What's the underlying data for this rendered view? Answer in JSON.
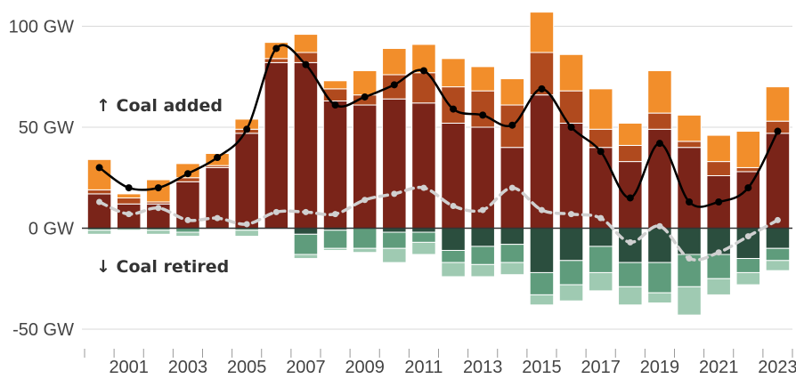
{
  "chart_data": {
    "type": "bar",
    "title": "",
    "xlabel": "",
    "ylabel": "",
    "ylim": [
      -60,
      100
    ],
    "y_ticks": [
      {
        "value": 100,
        "label": "100 GW"
      },
      {
        "value": 50,
        "label": "50 GW"
      },
      {
        "value": 0,
        "label": "0 GW"
      },
      {
        "value": -50,
        "label": "-50 GW"
      }
    ],
    "x_tick_labels": [
      "2001",
      "2003",
      "2005",
      "2007",
      "2009",
      "2011",
      "2013",
      "2015",
      "2017",
      "2019",
      "2021",
      "2023"
    ],
    "annotations": {
      "added": "↑ Coal added",
      "retired": "↓ Coal retired"
    },
    "categories": [
      "2000",
      "2001",
      "2002",
      "2003",
      "2004",
      "2005",
      "2006",
      "2007",
      "2008",
      "2009",
      "2010",
      "2011",
      "2012",
      "2013",
      "2014",
      "2015",
      "2016",
      "2017",
      "2018",
      "2019",
      "2020",
      "2021",
      "2022",
      "2023"
    ],
    "added_stack": {
      "segment_colors": [
        "#7a2419",
        "#b04a1e",
        "#f28e2b"
      ],
      "segment_values": [
        [
          17,
          2,
          15
        ],
        [
          12,
          3,
          2
        ],
        [
          12,
          1,
          11
        ],
        [
          23,
          2,
          7
        ],
        [
          30,
          1,
          6
        ],
        [
          47,
          2,
          5
        ],
        [
          82,
          2,
          8
        ],
        [
          82,
          5,
          9
        ],
        [
          63,
          6,
          4
        ],
        [
          61,
          5,
          12
        ],
        [
          64,
          12,
          13
        ],
        [
          62,
          15,
          14
        ],
        [
          52,
          18,
          14
        ],
        [
          50,
          18,
          12
        ],
        [
          40,
          21,
          13
        ],
        [
          66,
          21,
          20
        ],
        [
          52,
          16,
          18
        ],
        [
          40,
          9,
          20
        ],
        [
          33,
          8,
          11
        ],
        [
          49,
          8,
          21
        ],
        [
          40,
          3,
          13
        ],
        [
          26,
          7,
          13
        ],
        [
          28,
          2,
          18
        ],
        [
          47,
          6,
          17
        ]
      ]
    },
    "retired_stack": {
      "segment_colors": [
        "#2b4e3e",
        "#5f9c7c",
        "#9fcab2"
      ],
      "segment_values": [
        [
          0,
          1,
          2
        ],
        [
          0,
          0,
          1
        ],
        [
          0,
          1,
          2
        ],
        [
          0,
          2,
          2
        ],
        [
          0,
          0,
          0
        ],
        [
          0,
          1,
          3
        ],
        [
          0,
          0,
          0
        ],
        [
          3,
          10,
          2
        ],
        [
          1,
          9,
          1
        ],
        [
          0,
          10,
          2
        ],
        [
          2,
          8,
          7
        ],
        [
          2,
          5,
          6
        ],
        [
          11,
          6,
          7
        ],
        [
          9,
          9,
          6
        ],
        [
          8,
          9,
          6
        ],
        [
          22,
          11,
          5
        ],
        [
          16,
          12,
          8
        ],
        [
          9,
          13,
          9
        ],
        [
          17,
          12,
          9
        ],
        [
          17,
          15,
          5
        ],
        [
          13,
          16,
          14
        ],
        [
          13,
          12,
          8
        ],
        [
          15,
          7,
          6
        ],
        [
          10,
          6,
          5
        ]
      ]
    },
    "series": [
      {
        "type": "line",
        "color": "#000000",
        "values": [
          30,
          20,
          20,
          27,
          35,
          49,
          89,
          81,
          61,
          65,
          71,
          78,
          59,
          56,
          51,
          69,
          50,
          38,
          15,
          42,
          13,
          13,
          20,
          48
        ]
      },
      {
        "type": "line",
        "style": "dashed",
        "color": "#d0d0d0",
        "values": [
          13,
          7,
          10,
          4,
          5,
          2,
          8,
          8,
          7,
          14,
          17,
          20,
          11,
          9,
          20,
          9,
          7,
          5,
          -7,
          1,
          -15,
          -12,
          -4,
          4
        ]
      }
    ]
  }
}
